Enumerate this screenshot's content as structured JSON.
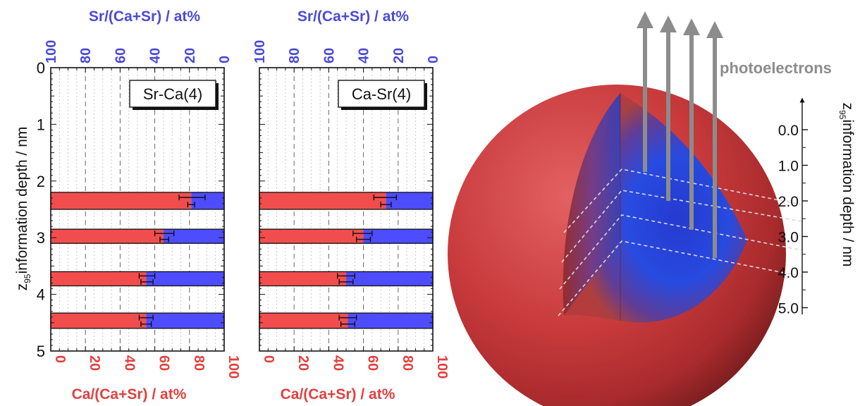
{
  "chart_data": [
    {
      "type": "bar",
      "panel_label": "Sr-Ca(4)",
      "ylabel": "information depth / nm",
      "ylabel_prefix": "z",
      "ylabel_sub": "95",
      "xlabel_bottom": "Ca/(Ca+Sr) / at%",
      "xlabel_top": "Sr/(Ca+Sr) / at%",
      "xlim": [
        0,
        100
      ],
      "ylim": [
        0,
        5
      ],
      "y_ticks": [
        "0",
        "1",
        "2",
        "3",
        "4",
        "5"
      ],
      "x_ticks_bottom": [
        "0",
        "20",
        "40",
        "60",
        "80",
        "100"
      ],
      "x_ticks_top": [
        "100",
        "80",
        "60",
        "40",
        "20",
        "0"
      ],
      "rows": [
        {
          "depth_from": 2.2,
          "depth_to": 2.5,
          "ca_at_percent": 81,
          "upper_err": [
            74,
            89
          ],
          "lower_err": [
            79,
            83
          ]
        },
        {
          "depth_from": 2.85,
          "depth_to": 3.1,
          "ca_at_percent": 65,
          "upper_err": [
            60,
            71
          ],
          "lower_err": [
            63,
            68
          ]
        },
        {
          "depth_from": 3.6,
          "depth_to": 3.85,
          "ca_at_percent": 55,
          "upper_err": [
            51,
            60
          ],
          "lower_err": [
            52,
            59
          ]
        },
        {
          "depth_from": 4.33,
          "depth_to": 4.6,
          "ca_at_percent": 55,
          "upper_err": [
            51,
            59
          ],
          "lower_err": [
            52,
            58
          ]
        }
      ]
    },
    {
      "type": "bar",
      "panel_label": "Ca-Sr(4)",
      "xlabel_bottom": "Ca/(Ca+Sr) / at%",
      "xlabel_top": "Sr/(Ca+Sr) / at%",
      "xlim": [
        0,
        100
      ],
      "ylim": [
        0,
        5
      ],
      "x_ticks_bottom": [
        "0",
        "20",
        "40",
        "60",
        "80",
        "100"
      ],
      "x_ticks_top": [
        "100",
        "80",
        "60",
        "40",
        "20",
        "0"
      ],
      "rows": [
        {
          "depth_from": 2.2,
          "depth_to": 2.5,
          "ca_at_percent": 73,
          "upper_err": [
            66,
            79
          ],
          "lower_err": [
            70,
            76
          ]
        },
        {
          "depth_from": 2.85,
          "depth_to": 3.1,
          "ca_at_percent": 60,
          "upper_err": [
            54,
            65
          ],
          "lower_err": [
            56,
            64
          ]
        },
        {
          "depth_from": 3.6,
          "depth_to": 3.85,
          "ca_at_percent": 50,
          "upper_err": [
            45,
            55
          ],
          "lower_err": [
            46,
            54
          ]
        },
        {
          "depth_from": 4.33,
          "depth_to": 4.6,
          "ca_at_percent": 51,
          "upper_err": [
            46,
            56
          ],
          "lower_err": [
            47,
            55
          ]
        }
      ]
    }
  ],
  "illustration": {
    "arrow_label": "photoelectrons",
    "depth_axis_label": "information depth / nm",
    "depth_axis_prefix": "z",
    "depth_axis_sub": "95",
    "depth_ticks": [
      "0.0",
      "1.0",
      "2.0",
      "3.0",
      "4.0",
      "5.0"
    ]
  },
  "colors": {
    "ca": "#f24d4d",
    "sr": "#4d4dff",
    "ca_text": "#e0413f",
    "sr_text": "#4b4ad6",
    "arrow": "#8c8c8c",
    "sphere": "#c9393a"
  }
}
